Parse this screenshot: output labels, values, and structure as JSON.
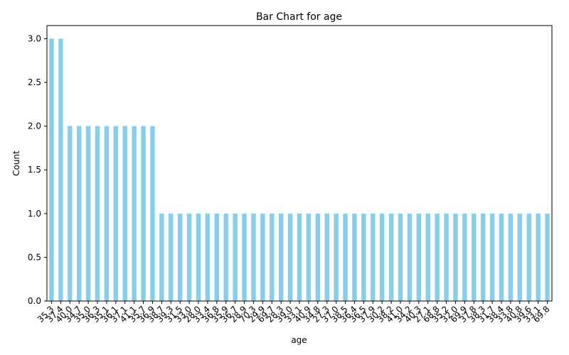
{
  "chart_data": {
    "type": "bar",
    "title": "Bar Chart for age",
    "xlabel": "age",
    "ylabel": "Count",
    "ylim": [
      0,
      3.15
    ],
    "yticks": [
      "0.0",
      "0.5",
      "1.0",
      "1.5",
      "2.0",
      "2.5",
      "3.0"
    ],
    "grid": false,
    "bar_color": "#87ceeb",
    "categories": [
      "35.3",
      "37.4",
      "40.0",
      "34.7",
      "35.0",
      "36.3",
      "35.1",
      "36.1",
      "37.1",
      "41.1",
      "35.7",
      "36.9",
      "38.7",
      "39.3",
      "31.5",
      "33.0",
      "28.0",
      "33.4",
      "36.8",
      "35.9",
      "36.7",
      "28.9",
      "70.3",
      "29.9",
      "69.7",
      "28.3",
      "39.0",
      "33.1",
      "40.9",
      "34.8",
      "27.3",
      "37.0",
      "38.5",
      "36.4",
      "36.5",
      "37.9",
      "30.2",
      "38.2",
      "41.0",
      "34.2",
      "40.3",
      "27.1",
      "68.8",
      "35.2",
      "32.0",
      "69.9",
      "37.8",
      "38.3",
      "31.7",
      "38.4",
      "33.8",
      "40.8",
      "39.6",
      "33.1",
      "69.8"
    ],
    "values": [
      3,
      3,
      2,
      2,
      2,
      2,
      2,
      2,
      2,
      2,
      2,
      2,
      1,
      1,
      1,
      1,
      1,
      1,
      1,
      1,
      1,
      1,
      1,
      1,
      1,
      1,
      1,
      1,
      1,
      1,
      1,
      1,
      1,
      1,
      1,
      1,
      1,
      1,
      1,
      1,
      1,
      1,
      1,
      1,
      1,
      1,
      1,
      1,
      1,
      1,
      1,
      1,
      1,
      1,
      1
    ]
  }
}
